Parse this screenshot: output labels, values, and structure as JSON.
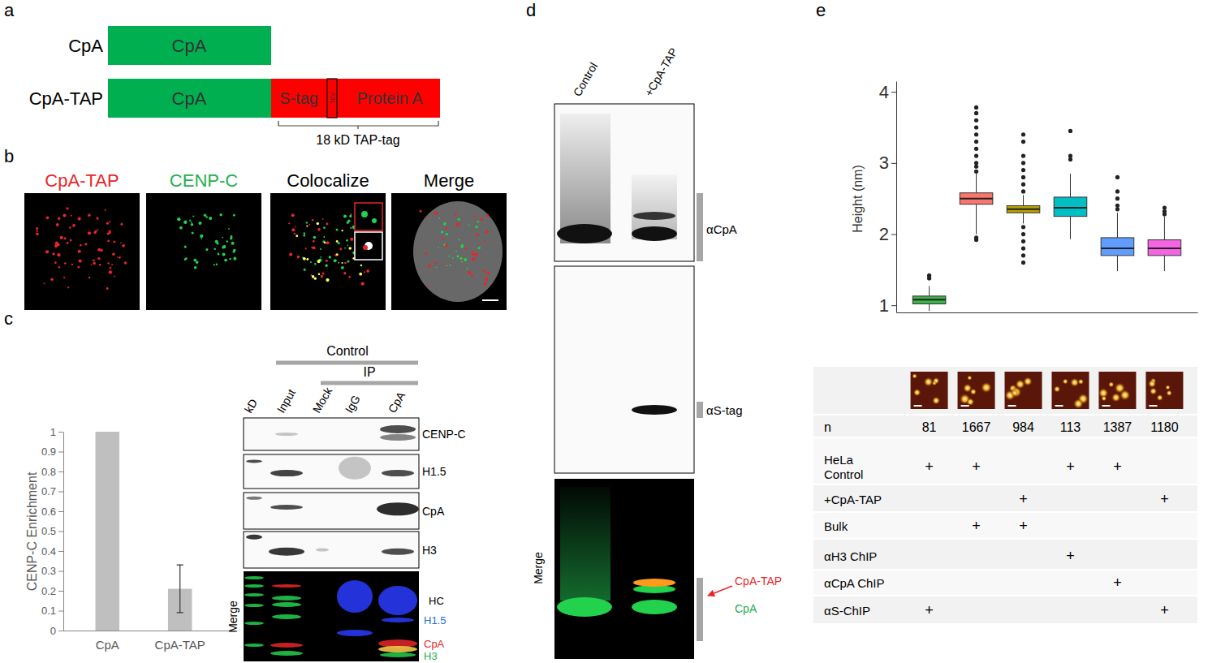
{
  "chart_data": [
    {
      "type": "bar",
      "categories": [
        "CpA",
        "CpA-TAP"
      ],
      "values": [
        1,
        0.21
      ],
      "errors": [
        null,
        0.12
      ],
      "color": "#bfbfbf",
      "y_label": "CENP-C Enrichment",
      "ylim": [
        0,
        1
      ],
      "yticks": [
        0,
        0.1,
        0.2,
        0.3,
        0.4,
        0.5,
        0.6,
        0.7,
        0.8,
        0.9,
        1
      ],
      "grid": false
    },
    {
      "type": "box",
      "y_label": "Height (nm)",
      "ylim": [
        0.9,
        4.15
      ],
      "yticks": [
        1,
        2,
        3,
        4
      ],
      "tick_labels": "y",
      "grid": false,
      "colors": [
        "#3cb44b",
        "#f8766d",
        "#b79f00",
        "#00bfc4",
        "#619cff",
        "#f564e3"
      ],
      "boxes": [
        {
          "low": 0.92,
          "q1": 1.02,
          "median": 1.08,
          "q3": 1.13,
          "high": 1.27,
          "outliers": [
            1.38,
            1.42
          ]
        },
        {
          "low": 2.0,
          "q1": 2.42,
          "median": 2.5,
          "q3": 2.58,
          "high": 2.85,
          "outliers": [
            1.92,
            1.95,
            2.88,
            2.95,
            3.0,
            3.1,
            3.2,
            3.3,
            3.4,
            3.5,
            3.6,
            3.7,
            3.78
          ]
        },
        {
          "low": 2.15,
          "q1": 2.3,
          "median": 2.35,
          "q3": 2.4,
          "high": 2.55,
          "outliers": [
            1.6,
            1.7,
            1.8,
            1.9,
            2.0,
            2.1,
            2.6,
            2.7,
            2.8,
            2.9,
            3.0,
            3.1,
            3.3,
            3.4
          ]
        },
        {
          "low": 1.93,
          "q1": 2.25,
          "median": 2.37,
          "q3": 2.52,
          "high": 2.85,
          "outliers": [
            3.05,
            3.1,
            3.45
          ]
        },
        {
          "low": 1.48,
          "q1": 1.7,
          "median": 1.8,
          "q3": 1.95,
          "high": 2.3,
          "outliers": [
            2.35,
            2.4,
            2.5,
            2.6,
            2.8
          ]
        },
        {
          "low": 1.48,
          "q1": 1.7,
          "median": 1.8,
          "q3": 1.92,
          "high": 2.25,
          "outliers": [
            2.28,
            2.32,
            2.37
          ]
        }
      ]
    }
  ],
  "panels": {
    "a": {
      "label": "a",
      "domain_color": "#00b050",
      "tag_color": "#ff0000",
      "constructs": [
        {
          "name": "CpA",
          "domain": "CpA"
        },
        {
          "name": "CpA-TAP",
          "domain": "CpA",
          "tag": [
            "S-tag",
            "TEV",
            "Protein A"
          ]
        }
      ],
      "tag_size": "18 kD TAP-tag"
    },
    "b": {
      "label": "b",
      "channels": [
        {
          "text": "CpA-TAP",
          "color": "#e8262a"
        },
        {
          "text": "CENP-C",
          "color": "#22b14c"
        },
        {
          "text": "Colocalize",
          "color": "#000000"
        },
        {
          "text": "Merge",
          "color": "#000000"
        }
      ]
    },
    "c": {
      "label": "c",
      "group": "Control",
      "subgroup": "IP",
      "lanes": [
        "kD",
        "Input",
        "Mock",
        "IgG",
        "CpA"
      ],
      "rows": [
        "CENP-C",
        "H1.5",
        "CpA",
        "H3"
      ],
      "merge": "Merge",
      "merge_labels": [
        {
          "text": "HC",
          "color": "#000000"
        },
        {
          "text": "H1.5",
          "color": "#1f6fd1"
        },
        {
          "text": "CpA",
          "color": "#e8262a"
        },
        {
          "text": "H3",
          "color": "#22b14c"
        }
      ]
    },
    "d": {
      "label": "d",
      "lanes": [
        "Control",
        "+CpA-TAP"
      ],
      "rows": [
        "αCpA",
        "αS-tag"
      ],
      "merge": "Merge",
      "merge_labels": [
        {
          "text": "CpA-TAP",
          "color": "#e8262a"
        },
        {
          "text": "CpA",
          "color": "#22b14c"
        }
      ]
    },
    "e": {
      "label": "e",
      "table": {
        "n_label": "n",
        "n": [
          81,
          1667,
          984,
          113,
          1387,
          1180
        ],
        "rows": [
          {
            "label": [
              "HeLa",
              "Control"
            ],
            "cells": [
              "+",
              "+",
              null,
              "+",
              "+",
              null
            ]
          },
          {
            "label": [
              "+CpA-TAP"
            ],
            "cells": [
              null,
              null,
              "+",
              null,
              null,
              "+"
            ]
          },
          {
            "label": [
              "Bulk"
            ],
            "cells": [
              null,
              "+",
              "+",
              null,
              null,
              null
            ]
          },
          {
            "label": [
              "αH3 ChIP"
            ],
            "cells": [
              null,
              null,
              null,
              "+",
              null,
              null
            ]
          },
          {
            "label": [
              "αCpA ChIP"
            ],
            "cells": [
              null,
              null,
              null,
              null,
              "+",
              null
            ]
          },
          {
            "label": [
              "αS-ChIP"
            ],
            "cells": [
              "+",
              null,
              null,
              null,
              null,
              "+"
            ]
          }
        ]
      }
    }
  }
}
